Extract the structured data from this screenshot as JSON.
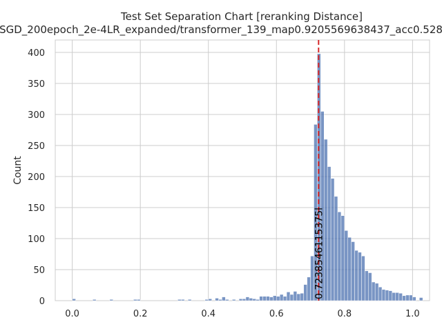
{
  "chart_data": {
    "type": "histogram",
    "title": "Test Set Separation Chart [reranking Distance]",
    "subtitle": "SGD_200epoch_2e-4LR_expanded/transformer_139_map0.9205569638437_acc0.528",
    "xlabel": "",
    "ylabel": "Count",
    "xlim": [
      -0.05,
      1.05
    ],
    "ylim": [
      0,
      420
    ],
    "x_ticks": [
      "0.0",
      "0.2",
      "0.4",
      "0.6",
      "0.8",
      "1.0"
    ],
    "y_ticks": [
      "0",
      "50",
      "100",
      "150",
      "200",
      "250",
      "300",
      "350",
      "400"
    ],
    "grid": true,
    "bar_color": "#4c72b0",
    "threshold": {
      "value": 0.7238546115375,
      "label": "0.7238546115375l",
      "color": "#d62728"
    },
    "bins": {
      "start": 0.0,
      "width": 0.01,
      "counts": [
        3,
        0,
        0,
        0,
        0,
        0,
        2,
        0,
        0,
        0,
        0,
        2,
        0,
        0,
        0,
        0,
        0,
        0,
        2,
        2,
        0,
        0,
        0,
        0,
        0,
        0,
        0,
        0,
        0,
        0,
        0,
        2,
        2,
        0,
        2,
        0,
        0,
        0,
        0,
        2,
        3,
        0,
        4,
        2,
        6,
        2,
        0,
        2,
        0,
        3,
        3,
        6,
        4,
        3,
        2,
        7,
        7,
        7,
        6,
        8,
        7,
        10,
        7,
        14,
        10,
        15,
        11,
        12,
        26,
        38,
        72,
        284,
        398,
        305,
        260,
        216,
        197,
        168,
        143,
        137,
        113,
        102,
        95,
        81,
        78,
        72,
        48,
        45,
        30,
        28,
        22,
        18,
        17,
        16,
        13,
        13,
        12,
        8,
        9,
        9,
        6,
        0,
        5
      ]
    }
  }
}
